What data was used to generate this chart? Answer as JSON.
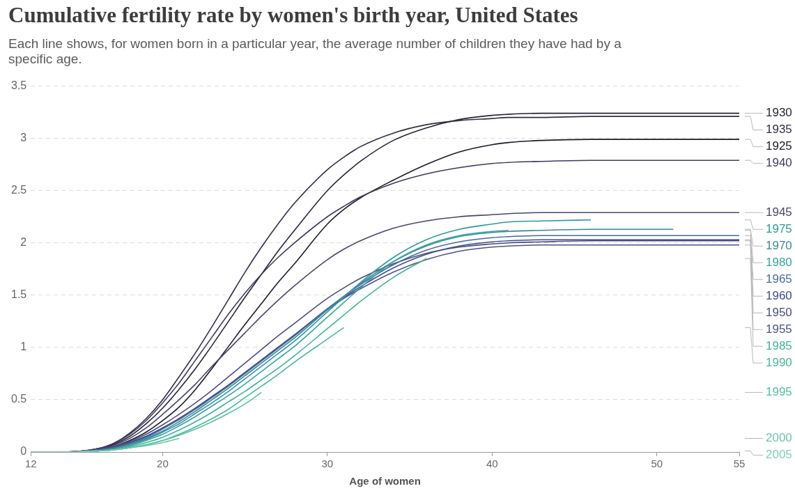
{
  "chart_data": {
    "type": "line",
    "title": "Cumulative fertility rate by women's birth year, United States",
    "subtitle": "Each line shows, for women born in a particular year, the average number of children they have had by a specific age.",
    "xlabel": "Age of women",
    "x": [
      12,
      14,
      16,
      17,
      18,
      19,
      20,
      21,
      22,
      23,
      24,
      25,
      26,
      27,
      28,
      30,
      31,
      32,
      34,
      36,
      38,
      40,
      41,
      43,
      46,
      51,
      55
    ],
    "xlim": [
      12,
      55
    ],
    "xticks": [
      12,
      20,
      30,
      40,
      50,
      55
    ],
    "ylim": [
      0,
      3.5
    ],
    "yticks": [
      0,
      0.5,
      1,
      1.5,
      2,
      2.5,
      3,
      3.5
    ],
    "grid": "y",
    "legend": false,
    "marker": "none",
    "line_style": "solid",
    "series": [
      {
        "name": "1925",
        "color": "#1c1a26",
        "values": [
          0,
          0,
          0.02,
          0.05,
          0.11,
          0.19,
          0.3,
          0.43,
          0.6,
          0.8,
          1.01,
          1.22,
          1.42,
          1.62,
          1.8,
          2.18,
          2.32,
          2.43,
          2.6,
          2.75,
          2.87,
          2.94,
          2.96,
          2.98,
          2.99,
          2.99,
          2.99
        ]
      },
      {
        "name": "1930",
        "color": "#262435",
        "values": [
          0,
          0,
          0.03,
          0.07,
          0.15,
          0.27,
          0.42,
          0.6,
          0.8,
          1.02,
          1.25,
          1.48,
          1.7,
          1.92,
          2.12,
          2.5,
          2.65,
          2.78,
          2.98,
          3.1,
          3.18,
          3.22,
          3.23,
          3.24,
          3.24,
          3.24,
          3.24
        ]
      },
      {
        "name": "1935",
        "color": "#302d45",
        "values": [
          0,
          0,
          0.03,
          0.08,
          0.18,
          0.32,
          0.5,
          0.72,
          0.95,
          1.2,
          1.46,
          1.72,
          1.96,
          2.18,
          2.38,
          2.7,
          2.82,
          2.92,
          3.05,
          3.13,
          3.17,
          3.19,
          3.2,
          3.2,
          3.21,
          3.21,
          3.21
        ]
      },
      {
        "name": "1940",
        "color": "#3e3a5e",
        "values": [
          0,
          0,
          0.03,
          0.08,
          0.17,
          0.3,
          0.47,
          0.66,
          0.88,
          1.1,
          1.32,
          1.52,
          1.7,
          1.86,
          2.0,
          2.25,
          2.35,
          2.44,
          2.57,
          2.66,
          2.72,
          2.76,
          2.77,
          2.78,
          2.79,
          2.79,
          2.79
        ]
      },
      {
        "name": "1945",
        "color": "#4a4570",
        "values": [
          0,
          0,
          0.02,
          0.06,
          0.13,
          0.23,
          0.36,
          0.5,
          0.65,
          0.82,
          0.98,
          1.14,
          1.3,
          1.45,
          1.59,
          1.84,
          1.94,
          2.02,
          2.14,
          2.21,
          2.25,
          2.27,
          2.28,
          2.29,
          2.29,
          2.29,
          2.29
        ]
      },
      {
        "name": "1950",
        "color": "#4b4c80",
        "values": [
          0,
          0,
          0.02,
          0.05,
          0.1,
          0.17,
          0.26,
          0.36,
          0.47,
          0.59,
          0.72,
          0.85,
          0.98,
          1.11,
          1.23,
          1.47,
          1.57,
          1.66,
          1.8,
          1.9,
          1.96,
          1.99,
          2.0,
          2.01,
          2.02,
          2.02,
          2.02
        ]
      },
      {
        "name": "1955",
        "color": "#4d5288",
        "values": [
          0,
          0,
          0.02,
          0.04,
          0.09,
          0.15,
          0.23,
          0.32,
          0.42,
          0.53,
          0.64,
          0.76,
          0.88,
          1.0,
          1.12,
          1.36,
          1.47,
          1.56,
          1.72,
          1.84,
          1.92,
          1.96,
          1.97,
          1.98,
          1.98,
          1.98,
          1.98
        ]
      },
      {
        "name": "1960",
        "color": "#3f4b8c",
        "values": [
          0,
          0,
          0.02,
          0.04,
          0.09,
          0.15,
          0.23,
          0.32,
          0.42,
          0.53,
          0.64,
          0.76,
          0.88,
          1.0,
          1.12,
          1.37,
          1.48,
          1.58,
          1.76,
          1.89,
          1.97,
          2.01,
          2.02,
          2.03,
          2.03,
          2.03,
          2.03
        ]
      },
      {
        "name": "1965",
        "color": "#456c9e",
        "values": [
          0,
          0,
          0.02,
          0.04,
          0.08,
          0.14,
          0.22,
          0.31,
          0.41,
          0.52,
          0.63,
          0.75,
          0.87,
          0.99,
          1.11,
          1.37,
          1.49,
          1.6,
          1.79,
          1.93,
          2.01,
          2.05,
          2.06,
          2.07,
          2.07,
          2.07,
          2.07
        ]
      },
      {
        "name": "1970",
        "color": "#3a86a0",
        "values": [
          0,
          0,
          0.01,
          0.03,
          0.07,
          0.13,
          0.2,
          0.29,
          0.39,
          0.5,
          0.61,
          0.73,
          0.85,
          0.97,
          1.09,
          1.36,
          1.49,
          1.61,
          1.82,
          1.97,
          2.06,
          2.1,
          2.11,
          2.12,
          2.13,
          2.13,
          null
        ]
      },
      {
        "name": "1975",
        "color": "#2f989c",
        "values": [
          0,
          0,
          0.01,
          0.03,
          0.07,
          0.12,
          0.19,
          0.27,
          0.37,
          0.47,
          0.58,
          0.7,
          0.82,
          0.94,
          1.06,
          1.34,
          1.48,
          1.62,
          1.86,
          2.03,
          2.13,
          2.18,
          2.2,
          2.21,
          2.22,
          null,
          null
        ]
      },
      {
        "name": "1980",
        "color": "#36a59b",
        "values": [
          0,
          0,
          0.01,
          0.03,
          0.06,
          0.11,
          0.17,
          0.25,
          0.34,
          0.44,
          0.54,
          0.65,
          0.77,
          0.89,
          1.01,
          1.29,
          1.43,
          1.57,
          1.82,
          1.98,
          2.07,
          2.11,
          2.12,
          null,
          null,
          null,
          null
        ]
      },
      {
        "name": "1985",
        "color": "#3fb19a",
        "values": [
          0,
          0,
          0.01,
          0.02,
          0.05,
          0.09,
          0.14,
          0.21,
          0.29,
          0.38,
          0.48,
          0.58,
          0.69,
          0.8,
          0.92,
          1.18,
          1.31,
          1.44,
          1.67,
          1.85,
          null,
          null,
          null,
          null,
          null,
          null,
          null
        ]
      },
      {
        "name": "1990",
        "color": "#48b99c",
        "values": [
          0,
          0,
          0.01,
          0.02,
          0.04,
          0.07,
          0.11,
          0.17,
          0.24,
          0.32,
          0.41,
          0.52,
          0.63,
          0.74,
          0.86,
          1.08,
          1.19,
          null,
          null,
          null,
          null,
          null,
          null,
          null,
          null,
          null,
          null
        ]
      },
      {
        "name": "1995",
        "color": "#56c1a2",
        "values": [
          0,
          0,
          0.01,
          0.02,
          0.04,
          0.07,
          0.11,
          0.16,
          0.22,
          0.29,
          0.37,
          0.46,
          0.57,
          null,
          null,
          null,
          null,
          null,
          null,
          null,
          null,
          null,
          null,
          null,
          null,
          null,
          null
        ]
      },
      {
        "name": "2000",
        "color": "#6cc7a8",
        "values": [
          0,
          0,
          0.01,
          0.02,
          0.04,
          0.06,
          0.09,
          0.13,
          null,
          null,
          null,
          null,
          null,
          null,
          null,
          null,
          null,
          null,
          null,
          null,
          null,
          null,
          null,
          null,
          null,
          null,
          null
        ]
      },
      {
        "name": "2005",
        "color": "#80cfb2",
        "values": [
          0,
          0,
          0.01,
          null,
          null,
          null,
          null,
          null,
          null,
          null,
          null,
          null,
          null,
          null,
          null,
          null,
          null,
          null,
          null,
          null,
          null,
          null,
          null,
          null,
          null,
          null,
          null
        ]
      }
    ]
  }
}
